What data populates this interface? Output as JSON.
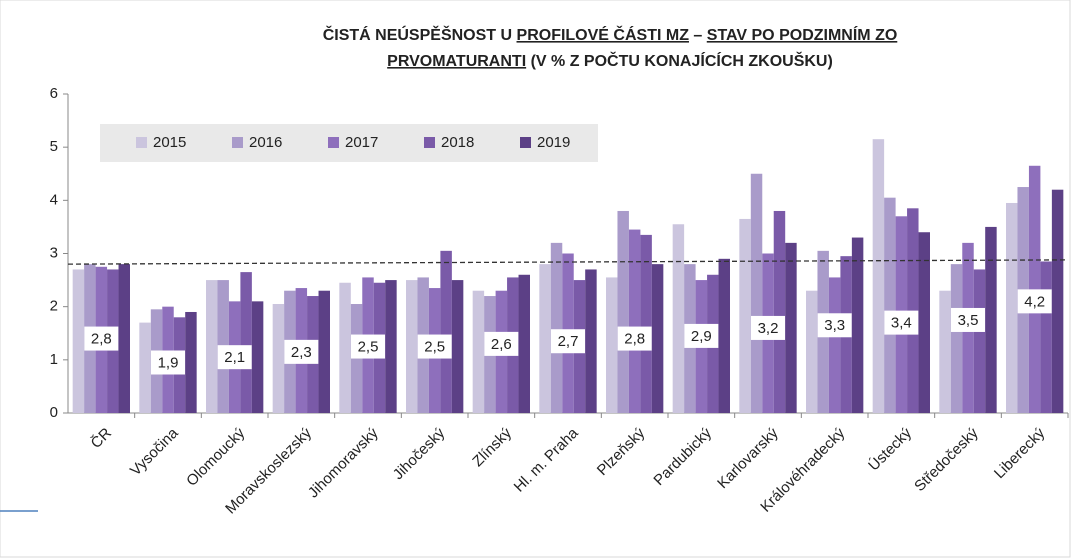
{
  "chart_data": {
    "type": "bar",
    "title_lines": [
      [
        {
          "text": "ČISTÁ NEÚSPĚŠNOST U ",
          "underline": false
        },
        {
          "text": "PROFILOVÉ ČÁSTI MZ",
          "underline": true
        },
        {
          "text": " – ",
          "underline": false
        },
        {
          "text": "STAV PO PODZIMNÍM ZO",
          "underline": true
        }
      ],
      [
        {
          "text": "PRVOMATURANTI",
          "underline": true
        },
        {
          "text": " (V % Z POČTU KONAJÍCÍCH ZKOUŠKU)",
          "underline": false
        }
      ]
    ],
    "categories": [
      "ČR",
      "Vysočina",
      "Olomoucký",
      "Moravskoslezský",
      "Jihomoravský",
      "Jihočeský",
      "Zlínský",
      "Hl. m. Praha",
      "Plzeňský",
      "Pardubický",
      "Karlovarský",
      "Královéhradecký",
      "Ústecký",
      "Středočeský",
      "Liberecký"
    ],
    "series": [
      {
        "name": "2015",
        "color": "#cbc5de",
        "values": [
          2.7,
          1.7,
          2.5,
          2.05,
          2.45,
          2.5,
          2.3,
          2.8,
          2.55,
          3.55,
          3.65,
          2.3,
          5.15,
          2.3,
          3.95
        ]
      },
      {
        "name": "2016",
        "color": "#a99bca",
        "values": [
          2.8,
          1.95,
          2.5,
          2.3,
          2.05,
          2.55,
          2.2,
          3.2,
          3.8,
          2.8,
          4.5,
          3.05,
          4.05,
          2.8,
          4.25
        ]
      },
      {
        "name": "2017",
        "color": "#8e6fbc",
        "values": [
          2.75,
          2.0,
          2.1,
          2.35,
          2.55,
          2.35,
          2.3,
          3.0,
          3.45,
          2.5,
          3.0,
          2.55,
          3.7,
          3.2,
          4.65
        ]
      },
      {
        "name": "2018",
        "color": "#7a5aa8",
        "values": [
          2.7,
          1.8,
          2.65,
          2.2,
          2.45,
          3.05,
          2.55,
          2.5,
          3.35,
          2.6,
          3.8,
          2.95,
          3.85,
          2.7,
          2.85
        ]
      },
      {
        "name": "2019",
        "color": "#5c4086",
        "values": [
          2.8,
          1.9,
          2.1,
          2.3,
          2.5,
          2.5,
          2.6,
          2.7,
          2.8,
          2.9,
          3.2,
          3.3,
          3.4,
          3.5,
          4.2
        ],
        "value_labels": [
          "2,8",
          "1,9",
          "2,1",
          "2,3",
          "2,5",
          "2,5",
          "2,6",
          "2,7",
          "2,8",
          "2,9",
          "3,2",
          "3,3",
          "3,4",
          "3,5",
          "4,2"
        ]
      }
    ],
    "trendline": [
      2.8,
      2.88
    ],
    "ylim": [
      0,
      6
    ],
    "yticks": [
      0,
      1,
      2,
      3,
      4,
      5,
      6
    ],
    "grid": false
  }
}
